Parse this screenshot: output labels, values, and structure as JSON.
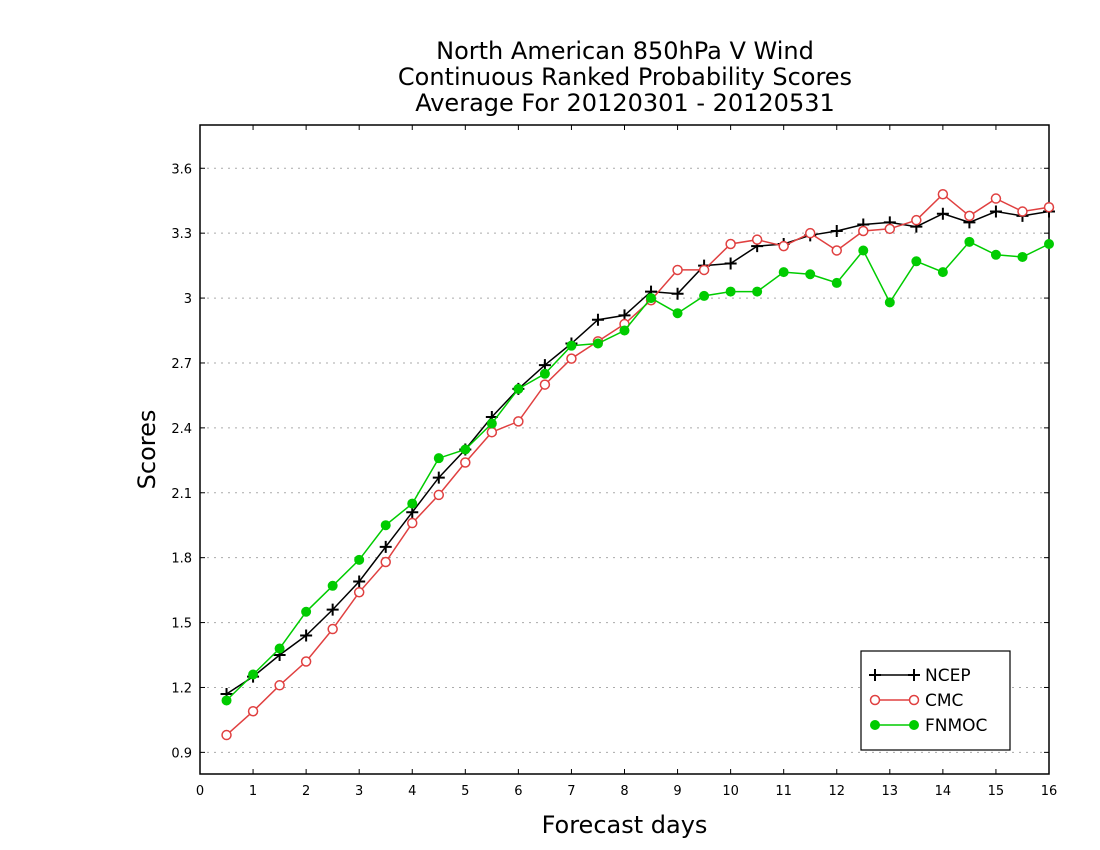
{
  "chart_data": {
    "type": "line",
    "title_lines": [
      "North American 850hPa V Wind",
      "Continuous Ranked Probability Scores",
      "Average For 20120301 - 20120531"
    ],
    "xlabel": "Forecast days",
    "ylabel": "Scores",
    "xlim": [
      0,
      16
    ],
    "ylim": [
      0.8,
      3.8
    ],
    "x_ticks": [
      0,
      1,
      2,
      3,
      4,
      5,
      6,
      7,
      8,
      9,
      10,
      11,
      12,
      13,
      14,
      15,
      16
    ],
    "x_tick_labels": [
      "0",
      "1",
      "2",
      "3",
      "4",
      "5",
      "6",
      "7",
      "8",
      "9",
      "10",
      "11",
      "12",
      "13",
      "14",
      "15",
      "16"
    ],
    "y_ticks": [
      0.9,
      1.2,
      1.5,
      1.8,
      2.1,
      2.4,
      2.7,
      3.0,
      3.3,
      3.6
    ],
    "y_tick_labels": [
      "0.9",
      "1.2",
      "1.5",
      "1.8",
      "2.1",
      "2.4",
      "2.7",
      "3",
      "3.3",
      "3.6"
    ],
    "grid": "horizontal dotted",
    "legend_position": "bottom-right",
    "x": [
      0.5,
      1,
      1.5,
      2,
      2.5,
      3,
      3.5,
      4,
      4.5,
      5,
      5.5,
      6,
      6.5,
      7,
      7.5,
      8,
      8.5,
      9,
      9.5,
      10,
      10.5,
      11,
      11.5,
      12,
      12.5,
      13,
      13.5,
      14,
      14.5,
      15,
      15.5,
      16
    ],
    "series": [
      {
        "name": "NCEP",
        "color": "#000000",
        "marker": "plus",
        "values": [
          1.17,
          1.25,
          1.35,
          1.44,
          1.56,
          1.69,
          1.85,
          2.01,
          2.17,
          2.3,
          2.45,
          2.58,
          2.69,
          2.79,
          2.9,
          2.92,
          3.03,
          3.02,
          3.15,
          3.16,
          3.24,
          3.25,
          3.29,
          3.31,
          3.34,
          3.35,
          3.33,
          3.39,
          3.35,
          3.4,
          3.38,
          3.4
        ]
      },
      {
        "name": "CMC",
        "color": "#e04040",
        "marker": "open-circle",
        "values": [
          0.98,
          1.09,
          1.21,
          1.32,
          1.47,
          1.64,
          1.78,
          1.96,
          2.09,
          2.24,
          2.38,
          2.43,
          2.6,
          2.72,
          2.8,
          2.88,
          2.99,
          3.13,
          3.13,
          3.25,
          3.27,
          3.24,
          3.3,
          3.22,
          3.31,
          3.32,
          3.36,
          3.48,
          3.38,
          3.46,
          3.4,
          3.42
        ]
      },
      {
        "name": "FNMOC",
        "color": "#00cc00",
        "marker": "filled-circle",
        "values": [
          1.14,
          1.26,
          1.38,
          1.55,
          1.67,
          1.79,
          1.95,
          2.05,
          2.26,
          2.3,
          2.42,
          2.58,
          2.65,
          2.78,
          2.79,
          2.85,
          3.0,
          2.93,
          3.01,
          3.03,
          3.03,
          3.12,
          3.11,
          3.07,
          3.22,
          2.98,
          3.17,
          3.12,
          3.26,
          3.2,
          3.19,
          3.25
        ]
      }
    ]
  }
}
